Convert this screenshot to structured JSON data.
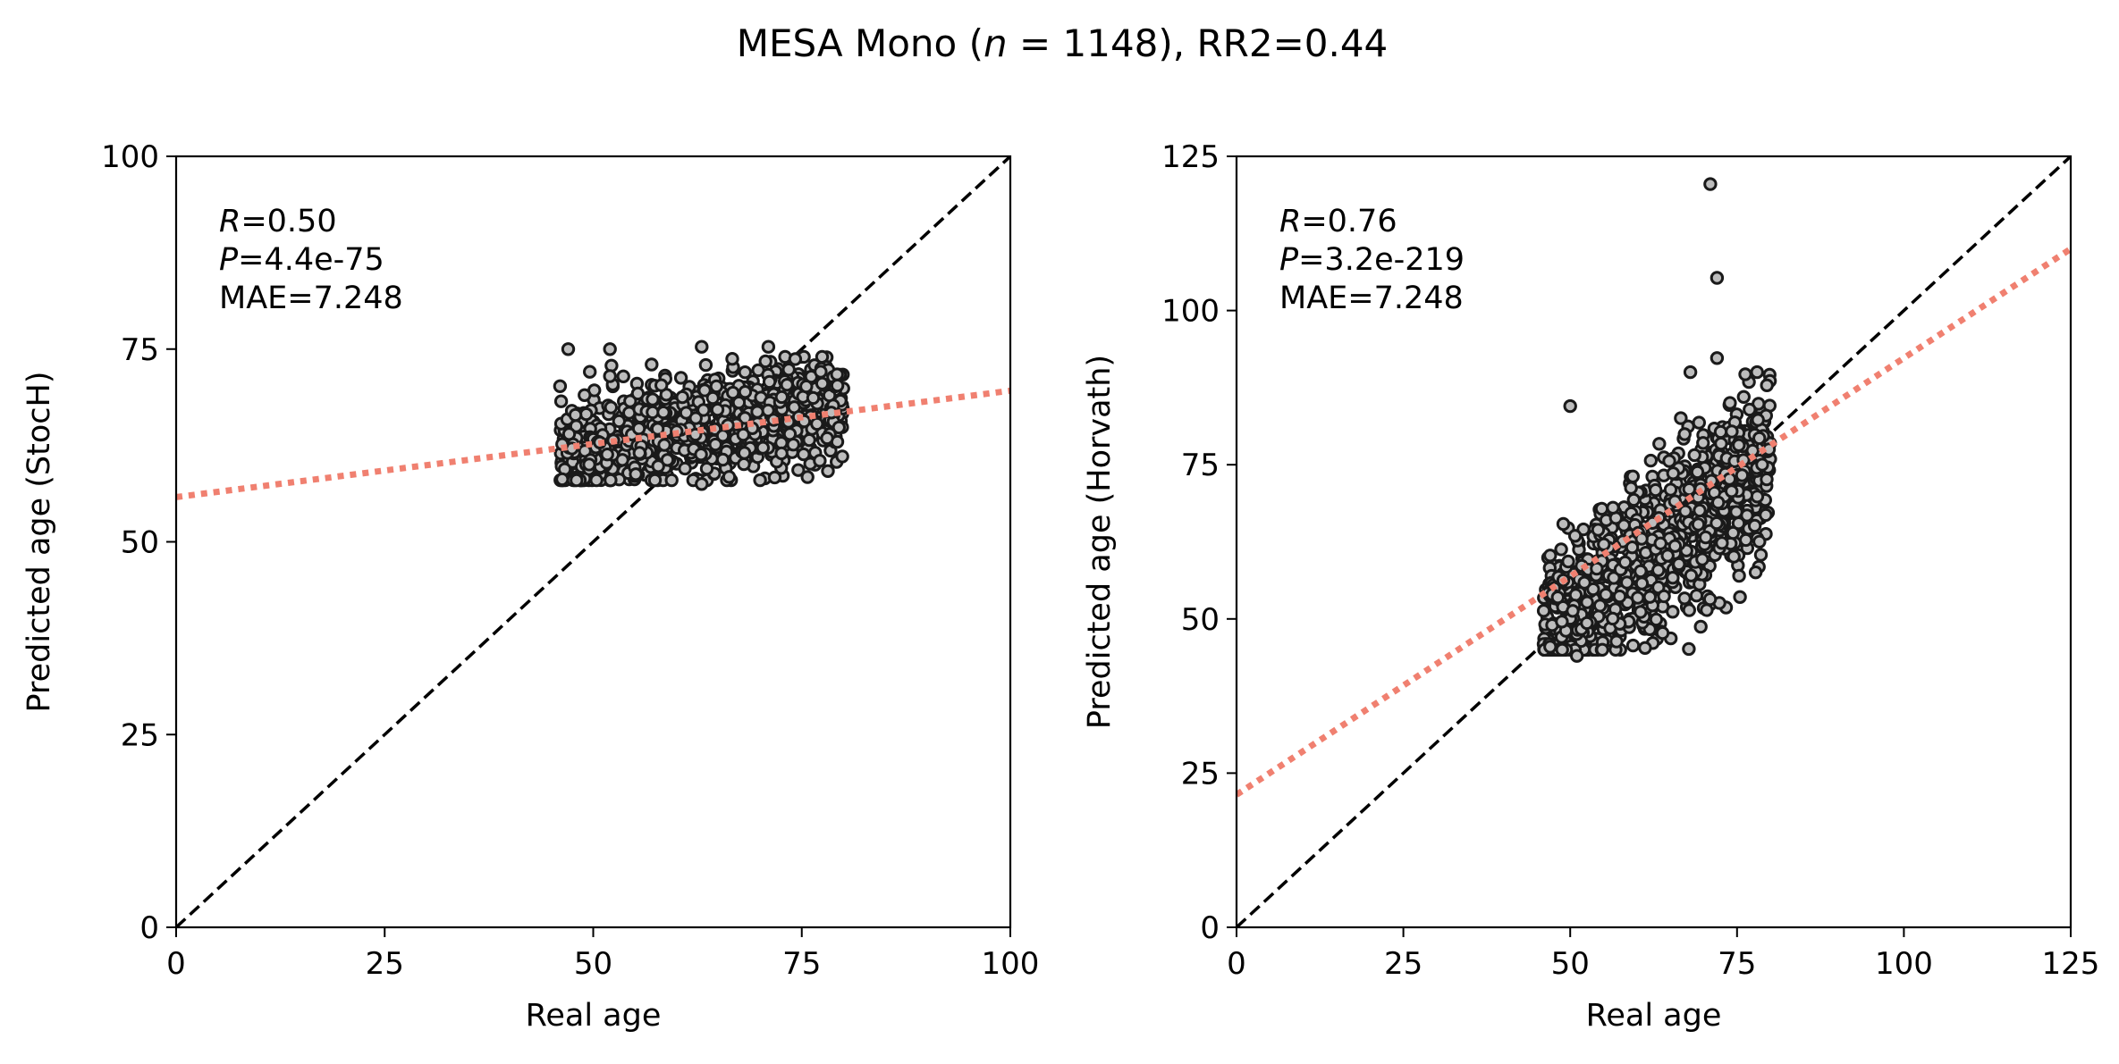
{
  "figure": {
    "title_prefix": "MESA Mono (",
    "title_italic": "n",
    "title_suffix": " = 1148), RR2=0.44"
  },
  "style": {
    "point_face": "#bdbdbd",
    "point_edge": "#1a1a1a",
    "identity_line": "#000000",
    "fit_line": "#f08070"
  },
  "chart_data": [
    {
      "type": "scatter",
      "title": "",
      "xlabel": "Real age",
      "ylabel": "Predicted age (StocH)",
      "xlim": [
        0,
        100
      ],
      "ylim": [
        0,
        100
      ],
      "xticks": [
        0,
        25,
        50,
        75,
        100
      ],
      "yticks": [
        0,
        25,
        50,
        75,
        100
      ],
      "grid": false,
      "stats": {
        "r_label": "R",
        "r_value": "=0.50",
        "p_label": "P",
        "p_value": "=4.4e-75",
        "mae": "MAE=7.248"
      },
      "n_points": 1148,
      "x_range": [
        45,
        80
      ],
      "y_range": [
        57,
        76
      ],
      "identity_line": {
        "x": [
          0,
          100
        ],
        "y": [
          0,
          100
        ]
      },
      "fit_line": {
        "x": [
          0,
          100
        ],
        "y": [
          55.8,
          69.6
        ]
      },
      "notable_points": [
        {
          "x": 47,
          "y": 75
        },
        {
          "x": 52,
          "y": 75
        },
        {
          "x": 63,
          "y": 75.3
        },
        {
          "x": 71,
          "y": 75.3
        },
        {
          "x": 52,
          "y": 71.5
        },
        {
          "x": 57,
          "y": 73
        },
        {
          "x": 63,
          "y": 57.5
        },
        {
          "x": 61,
          "y": 59.5
        },
        {
          "x": 48,
          "y": 58
        }
      ]
    },
    {
      "type": "scatter",
      "title": "",
      "xlabel": "Real age",
      "ylabel": "Predicted age (Horvath)",
      "xlim": [
        0,
        125
      ],
      "ylim": [
        0,
        125
      ],
      "xticks": [
        0,
        25,
        50,
        75,
        100,
        125
      ],
      "yticks": [
        0,
        25,
        50,
        75,
        100,
        125
      ],
      "grid": false,
      "stats": {
        "r_label": "R",
        "r_value": "=0.76",
        "p_label": "P",
        "p_value": "=3.2e-219",
        "mae": "MAE=7.248"
      },
      "n_points": 1148,
      "x_range": [
        45,
        80
      ],
      "y_range": [
        44,
        121
      ],
      "identity_line": {
        "x": [
          0,
          125
        ],
        "y": [
          0,
          125
        ]
      },
      "fit_line": {
        "x": [
          0,
          125
        ],
        "y": [
          21.5,
          110
        ]
      },
      "notable_points": [
        {
          "x": 71,
          "y": 120.5
        },
        {
          "x": 72,
          "y": 105.3
        },
        {
          "x": 50,
          "y": 84.5
        },
        {
          "x": 72,
          "y": 92.3
        },
        {
          "x": 51,
          "y": 44
        },
        {
          "x": 47,
          "y": 45.5
        },
        {
          "x": 68,
          "y": 90
        },
        {
          "x": 78,
          "y": 90
        },
        {
          "x": 76,
          "y": 86
        }
      ]
    }
  ]
}
